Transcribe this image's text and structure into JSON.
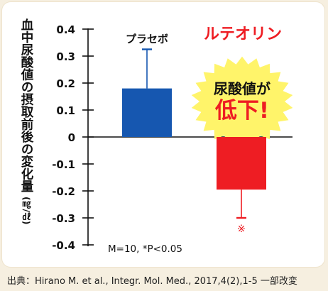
{
  "chart_data": {
    "type": "bar",
    "categories": [
      "プラセボ",
      "ルテオリン"
    ],
    "series": [
      {
        "values": [
          0.18,
          -0.195
        ],
        "errors": [
          0.145,
          0.105
        ]
      }
    ],
    "colors": {
      "placebo": "#1657b0",
      "luteolin": "#ee1d23"
    },
    "ylabel": "血中尿酸値の摂取前後の変化量",
    "ylabel_unit": "(㎎/㎗)",
    "ylim": [
      -0.4,
      0.4
    ],
    "yticks": [
      -0.4,
      -0.3,
      -0.2,
      -0.1,
      0,
      0.1,
      0.2,
      0.3,
      0.4
    ],
    "ytick_labels": [
      "-0.4",
      "-0.3",
      "-0.2",
      "-0.1",
      "0",
      "0.1",
      "0.2",
      "0.3",
      "0.4"
    ],
    "grid": false,
    "bar_labels": {
      "placebo": "プラセボ",
      "luteolin": "ルテオリン"
    },
    "significance_mark": "※",
    "note": "M=10, *P<0.05",
    "callout": {
      "line1": "尿酸値が",
      "line2": "低下!",
      "color": "#fff46a"
    }
  },
  "source": "出典：Hirano M. et al., Integr. Mol. Med., 2017,4(2),1-5 一部改変"
}
